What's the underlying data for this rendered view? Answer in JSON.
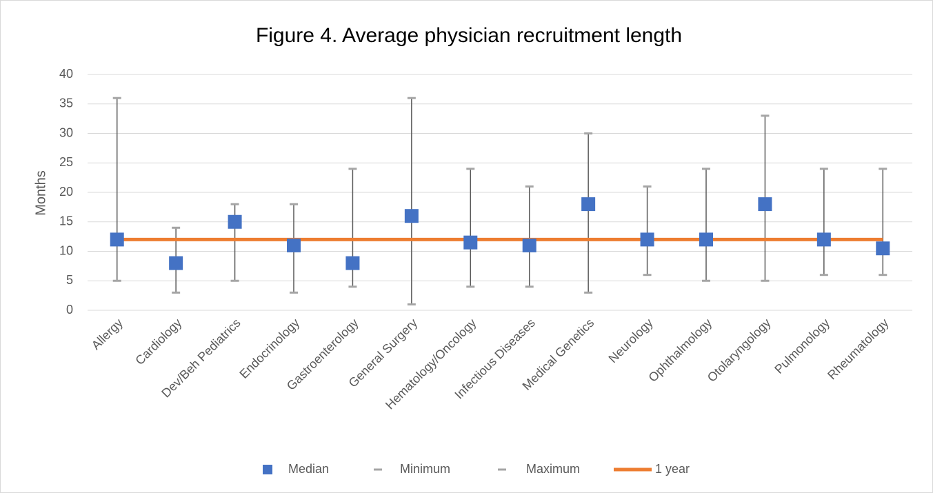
{
  "chart_data": {
    "type": "errorbar",
    "title": "Figure 4. Average physician recruitment length",
    "y_label": "Months",
    "categories": [
      "Allergy",
      "Cardiology",
      "Dev/Beh Pediatrics",
      "Endocrinology",
      "Gastroenterology",
      "General Surgery",
      "Hematology/Oncology",
      "Infectious Diseases",
      "Medical Genetics",
      "Neurology",
      "Ophthalmology",
      "Otolaryngology",
      "Pulmonology",
      "Rheumatology"
    ],
    "series": [
      {
        "name": "Median",
        "color": "#4472c4",
        "marker": "square",
        "values": [
          12,
          8,
          15,
          11,
          8,
          16,
          11.5,
          11,
          18,
          12,
          12,
          18,
          12,
          10.5
        ]
      },
      {
        "name": "Minimum",
        "color": "#a5a5a5",
        "marker": "dash",
        "values": [
          5,
          3,
          5,
          3,
          4,
          1,
          4,
          4,
          3,
          6,
          5,
          5,
          6,
          6
        ]
      },
      {
        "name": "Maximum",
        "color": "#a5a5a5",
        "marker": "dash",
        "values": [
          36,
          14,
          18,
          18,
          24,
          36,
          24,
          21,
          30,
          21,
          24,
          33,
          24,
          24
        ]
      },
      {
        "name": "1 year",
        "color": "#ed7d31",
        "marker": "line",
        "values": [
          12,
          12,
          12,
          12,
          12,
          12,
          12,
          12,
          12,
          12,
          12,
          12,
          12,
          12
        ]
      }
    ],
    "range_line_color": "#595959",
    "ylim": [
      0,
      40
    ],
    "yticks": [
      0,
      5,
      10,
      15,
      20,
      25,
      30,
      35,
      40
    ],
    "grid": true,
    "legend": "bottom"
  }
}
